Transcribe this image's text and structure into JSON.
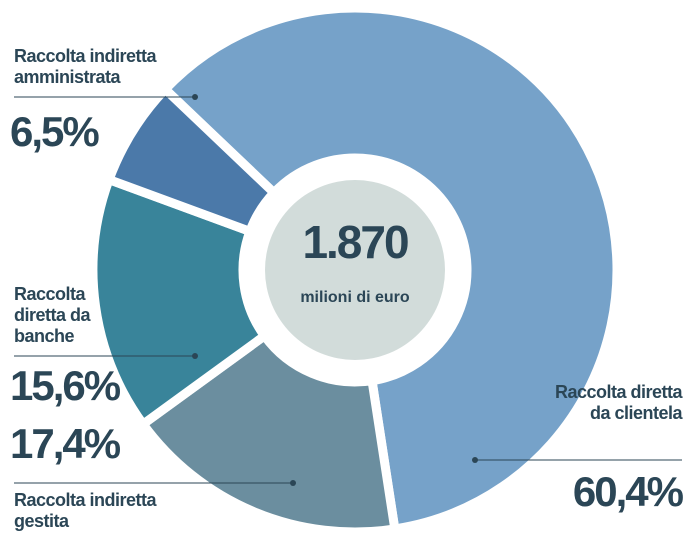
{
  "chart_data": {
    "type": "pie",
    "center_value": "1.870",
    "center_label": "milioni di euro",
    "categories": [
      "Raccolta diretta da clientela",
      "Raccolta indiretta gestita",
      "Raccolta diretta da banche",
      "Raccolta indiretta amministrata"
    ],
    "values": [
      60.4,
      17.4,
      15.6,
      6.5
    ],
    "value_labels": [
      "60,4%",
      "17,4%",
      "15,6%",
      "6,5%"
    ],
    "colors": [
      "#76a2c9",
      "#6b8e9f",
      "#39849a",
      "#4b79a9"
    ]
  }
}
